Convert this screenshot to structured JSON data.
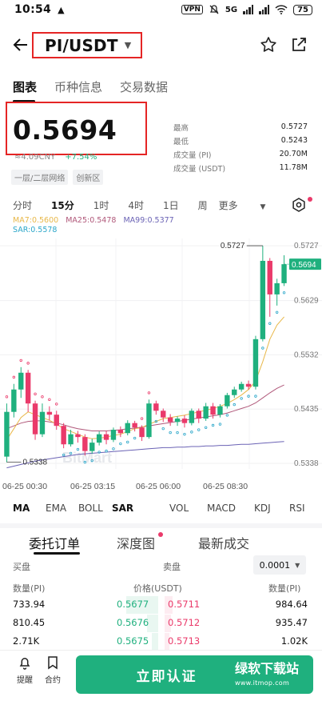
{
  "status_bar": {
    "time": "10:54",
    "vpn": "VPN",
    "network": "5G",
    "battery": "75"
  },
  "header": {
    "pair": "PI/USDT"
  },
  "tabs": [
    "图表",
    "币种信息",
    "交易数据"
  ],
  "price": {
    "last": "0.5694",
    "cny": "≈4.09CNY",
    "change": "+7.54%",
    "tags": [
      "一层/二层网络",
      "创新区"
    ]
  },
  "stats": [
    {
      "label": "最高",
      "value": "0.5727"
    },
    {
      "label": "最低",
      "value": "0.5243"
    },
    {
      "label": "成交量 (PI)",
      "value": "20.70M"
    },
    {
      "label": "成交量 (USDT)",
      "value": "11.78M"
    }
  ],
  "intervals": [
    "分时",
    "15分",
    "1时",
    "4时",
    "1日",
    "周",
    "更多"
  ],
  "ma_legend": {
    "ma7": "MA7:0.5600",
    "ma25": "MA25:0.5478",
    "ma99": "MA99:0.5377",
    "sar": "SAR:0.5578"
  },
  "chart_data": {
    "type": "candlestick",
    "y_ticks": [
      "0.5727",
      "0.5629",
      "0.5532",
      "0.5435",
      "0.5338"
    ],
    "x_ticks": [
      "06-25 00:30",
      "06-25 03:15",
      "06-25 06:00",
      "06-25 08:30"
    ],
    "current_price_label": "0.5694",
    "high_label": "0.5727",
    "low_label": "0.5338",
    "watermark": "BitMart",
    "ylim": [
      0.5328,
      0.574
    ],
    "colors": {
      "up": "#1fb07e",
      "down": "#ea3a6a",
      "ma7": "#e8b84a",
      "ma25": "#b0587a",
      "ma99": "#6b63b5"
    },
    "candles": [
      [
        0.535,
        0.543,
        0.534,
        0.5445
      ],
      [
        0.543,
        0.547,
        0.542,
        0.548
      ],
      [
        0.547,
        0.55,
        0.5455,
        0.551
      ],
      [
        0.55,
        0.5445,
        0.543,
        0.5505
      ],
      [
        0.5445,
        0.539,
        0.538,
        0.545
      ],
      [
        0.539,
        0.543,
        0.5385,
        0.5445
      ],
      [
        0.543,
        0.5425,
        0.5415,
        0.544
      ],
      [
        0.5425,
        0.5405,
        0.5398,
        0.5432
      ],
      [
        0.5405,
        0.5372,
        0.5365,
        0.541
      ],
      [
        0.5372,
        0.539,
        0.5368,
        0.5398
      ],
      [
        0.539,
        0.5385,
        0.5375,
        0.5396
      ],
      [
        0.5385,
        0.536,
        0.5352,
        0.539
      ],
      [
        0.536,
        0.5375,
        0.5355,
        0.5382
      ],
      [
        0.5375,
        0.539,
        0.537,
        0.5395
      ],
      [
        0.539,
        0.538,
        0.5372,
        0.5396
      ],
      [
        0.538,
        0.5398,
        0.5376,
        0.5402
      ],
      [
        0.5398,
        0.5392,
        0.5385,
        0.5404
      ],
      [
        0.5392,
        0.541,
        0.5388,
        0.5415
      ],
      [
        0.541,
        0.5402,
        0.5395,
        0.5414
      ],
      [
        0.5402,
        0.5385,
        0.5378,
        0.5406
      ],
      [
        0.5385,
        0.5445,
        0.5382,
        0.5452
      ],
      [
        0.5445,
        0.5432,
        0.5425,
        0.545
      ],
      [
        0.5432,
        0.542,
        0.5412,
        0.5436
      ],
      [
        0.542,
        0.5412,
        0.5405,
        0.5426
      ],
      [
        0.5412,
        0.5418,
        0.5405,
        0.5422
      ],
      [
        0.5418,
        0.541,
        0.5402,
        0.5424
      ],
      [
        0.541,
        0.5432,
        0.5406,
        0.5436
      ],
      [
        0.5432,
        0.5418,
        0.541,
        0.5436
      ],
      [
        0.5418,
        0.544,
        0.5414,
        0.5446
      ],
      [
        0.544,
        0.5425,
        0.5418,
        0.5446
      ],
      [
        0.5425,
        0.544,
        0.542,
        0.5444
      ],
      [
        0.544,
        0.546,
        0.5436,
        0.5464
      ],
      [
        0.546,
        0.547,
        0.5455,
        0.5475
      ],
      [
        0.547,
        0.548,
        0.5466,
        0.5484
      ],
      [
        0.548,
        0.5475,
        0.547,
        0.5486
      ],
      [
        0.5475,
        0.556,
        0.547,
        0.5566
      ],
      [
        0.556,
        0.57,
        0.5556,
        0.5727
      ],
      [
        0.57,
        0.564,
        0.56,
        0.5705
      ],
      [
        0.564,
        0.566,
        0.562,
        0.5668
      ],
      [
        0.566,
        0.5694,
        0.5655,
        0.571
      ]
    ],
    "ma7": [
      0.538,
      0.54,
      0.542,
      0.543,
      0.5425,
      0.542,
      0.5415,
      0.5408,
      0.54,
      0.5395,
      0.539,
      0.5385,
      0.5382,
      0.5383,
      0.5385,
      0.5388,
      0.539,
      0.5395,
      0.54,
      0.5402,
      0.5408,
      0.5413,
      0.5418,
      0.542,
      0.5422,
      0.5424,
      0.5427,
      0.543,
      0.5433,
      0.5436,
      0.544,
      0.5445,
      0.5452,
      0.546,
      0.547,
      0.5485,
      0.552,
      0.556,
      0.5585,
      0.56
    ],
    "ma25": [
      0.54,
      0.5405,
      0.541,
      0.5413,
      0.5414,
      0.5414,
      0.5412,
      0.541,
      0.5407,
      0.5403,
      0.54,
      0.5398,
      0.5396,
      0.5396,
      0.5396,
      0.5397,
      0.5398,
      0.54,
      0.5401,
      0.5403,
      0.5405,
      0.5407,
      0.5409,
      0.5411,
      0.5413,
      0.5415,
      0.5417,
      0.5419,
      0.5421,
      0.5423,
      0.5425,
      0.5428,
      0.5432,
      0.5436,
      0.544,
      0.5446,
      0.5455,
      0.5464,
      0.5472,
      0.5478
    ],
    "ma99": [
      0.533,
      0.5333,
      0.5336,
      0.5339,
      0.5342,
      0.5344,
      0.5346,
      0.5348,
      0.535,
      0.5352,
      0.5354,
      0.5355,
      0.5356,
      0.5357,
      0.5358,
      0.5359,
      0.536,
      0.5361,
      0.5362,
      0.5363,
      0.5364,
      0.5365,
      0.5366,
      0.5366,
      0.5367,
      0.5367,
      0.5368,
      0.5368,
      0.5369,
      0.5369,
      0.537,
      0.537,
      0.5371,
      0.5372,
      0.5372,
      0.5373,
      0.5374,
      0.5375,
      0.5376,
      0.5377
    ]
  },
  "indicator_tabs": [
    "MA",
    "EMA",
    "BOLL",
    "SAR",
    "VOL",
    "MACD",
    "KDJ",
    "RSI"
  ],
  "order_book": {
    "tabs": [
      "委托订单",
      "深度图",
      "最新成交"
    ],
    "buy_label": "买盘",
    "sell_label": "卖盘",
    "precision": "0.0001",
    "col_qty_left": "数量(PI)",
    "col_price": "价格(USDT)",
    "col_qty_right": "数量(PI)",
    "rows": [
      {
        "bid_qty": "733.94",
        "bid": "0.5677",
        "ask": "0.5711",
        "ask_qty": "984.64"
      },
      {
        "bid_qty": "810.45",
        "bid": "0.5676",
        "ask": "0.5712",
        "ask_qty": "935.47"
      },
      {
        "bid_qty": "2.71K",
        "bid": "0.5675",
        "ask": "0.5713",
        "ask_qty": "1.02K"
      }
    ]
  },
  "bottom_bar": {
    "alert": "提醒",
    "contract": "合约",
    "cta": "立即认证",
    "watermark_title": "绿软下载站",
    "watermark_url": "www.itmop.com"
  }
}
